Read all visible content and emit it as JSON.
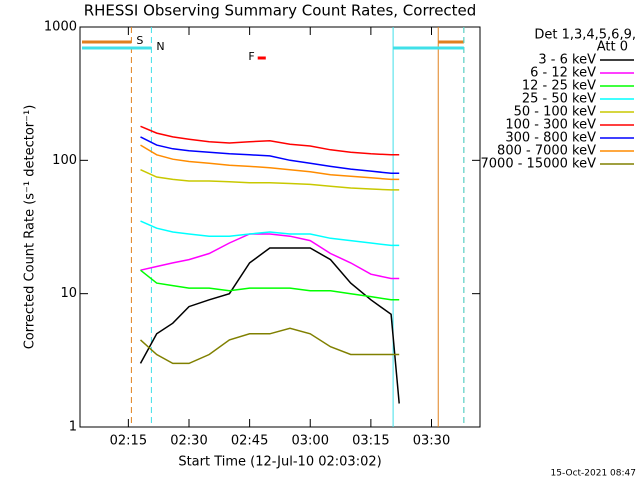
{
  "chart_data": {
    "type": "line",
    "title": "RHESSI Observing Summary Count Rates, Corrected",
    "x_label": "Start Time (12-Jul-10 02:03:02)",
    "y_label": "Corrected Count Rate (s⁻¹ detector⁻¹)",
    "legend_title": [
      "Det 1,3,4,5,6,9,",
      "Att 0"
    ],
    "footer": "15-Oct-2021 08:47",
    "log_y": true,
    "legend": "right",
    "xlim": [
      "02:03:02",
      "03:42"
    ],
    "xticks": [
      "02:15",
      "02:30",
      "02:45",
      "03:00",
      "03:15",
      "03:30"
    ],
    "ylim": [
      1,
      1000
    ],
    "yticks": [
      1,
      10,
      100,
      1000
    ],
    "x": [
      "02:18",
      "02:22",
      "02:26",
      "02:30",
      "02:35",
      "02:40",
      "02:45",
      "02:50",
      "02:55",
      "03:00",
      "03:05",
      "03:10",
      "03:15",
      "03:20",
      "03:22"
    ],
    "series": [
      {
        "name": "3 - 6 keV",
        "color": "#000000",
        "values": [
          3,
          5,
          6,
          8,
          9,
          10,
          17,
          22,
          22,
          22,
          18,
          12,
          9,
          7,
          1.5
        ]
      },
      {
        "name": "6 - 12 keV",
        "color": "#ff00ff",
        "values": [
          15,
          16,
          17,
          18,
          20,
          24,
          28,
          28,
          27,
          25,
          20,
          17,
          14,
          13,
          13
        ]
      },
      {
        "name": "12 - 25 keV",
        "color": "#00ff00",
        "values": [
          15,
          12,
          11.5,
          11,
          11,
          10.5,
          11,
          11,
          11,
          10.5,
          10.5,
          10,
          9.5,
          9,
          9
        ]
      },
      {
        "name": "25 - 50 keV",
        "color": "#00ffff",
        "values": [
          35,
          31,
          29,
          28,
          27,
          27,
          28,
          29,
          28,
          28,
          26,
          25,
          24,
          23,
          23
        ]
      },
      {
        "name": "50 - 100 keV",
        "color": "#c8c800",
        "values": [
          85,
          75,
          72,
          70,
          70,
          69,
          68,
          68,
          67,
          66,
          64,
          62,
          61,
          60,
          60
        ]
      },
      {
        "name": "100 - 300 keV",
        "color": "#ff0000",
        "values": [
          180,
          160,
          150,
          144,
          138,
          135,
          138,
          140,
          132,
          128,
          120,
          115,
          112,
          110,
          110
        ]
      },
      {
        "name": "300 - 800 keV",
        "color": "#0000ff",
        "values": [
          150,
          130,
          122,
          118,
          115,
          112,
          110,
          108,
          100,
          95,
          90,
          86,
          83,
          80,
          80
        ]
      },
      {
        "name": "800 - 7000 keV",
        "color": "#ff8c00",
        "values": [
          130,
          110,
          102,
          98,
          95,
          92,
          90,
          88,
          85,
          82,
          78,
          76,
          74,
          72,
          72
        ]
      },
      {
        "name": "7000 - 15000 keV",
        "color": "#808000",
        "values": [
          4.5,
          3.5,
          3,
          3,
          3.5,
          4.5,
          5,
          5,
          5.5,
          5,
          4,
          3.5,
          3.5,
          3.5,
          3.5
        ]
      }
    ],
    "events": [
      {
        "label": "S",
        "color": "#e0801e",
        "dashed": [
          "02:15:45",
          "03:38"
        ],
        "solid": "03:31:40"
      },
      {
        "label": "N",
        "color": "#40e0e8",
        "dashed": [
          "02:20:42",
          "03:38"
        ],
        "solid": "03:20:30"
      }
    ],
    "flare": {
      "label": "F",
      "color": "#ff0000",
      "start": "02:47",
      "end": "02:49"
    }
  }
}
